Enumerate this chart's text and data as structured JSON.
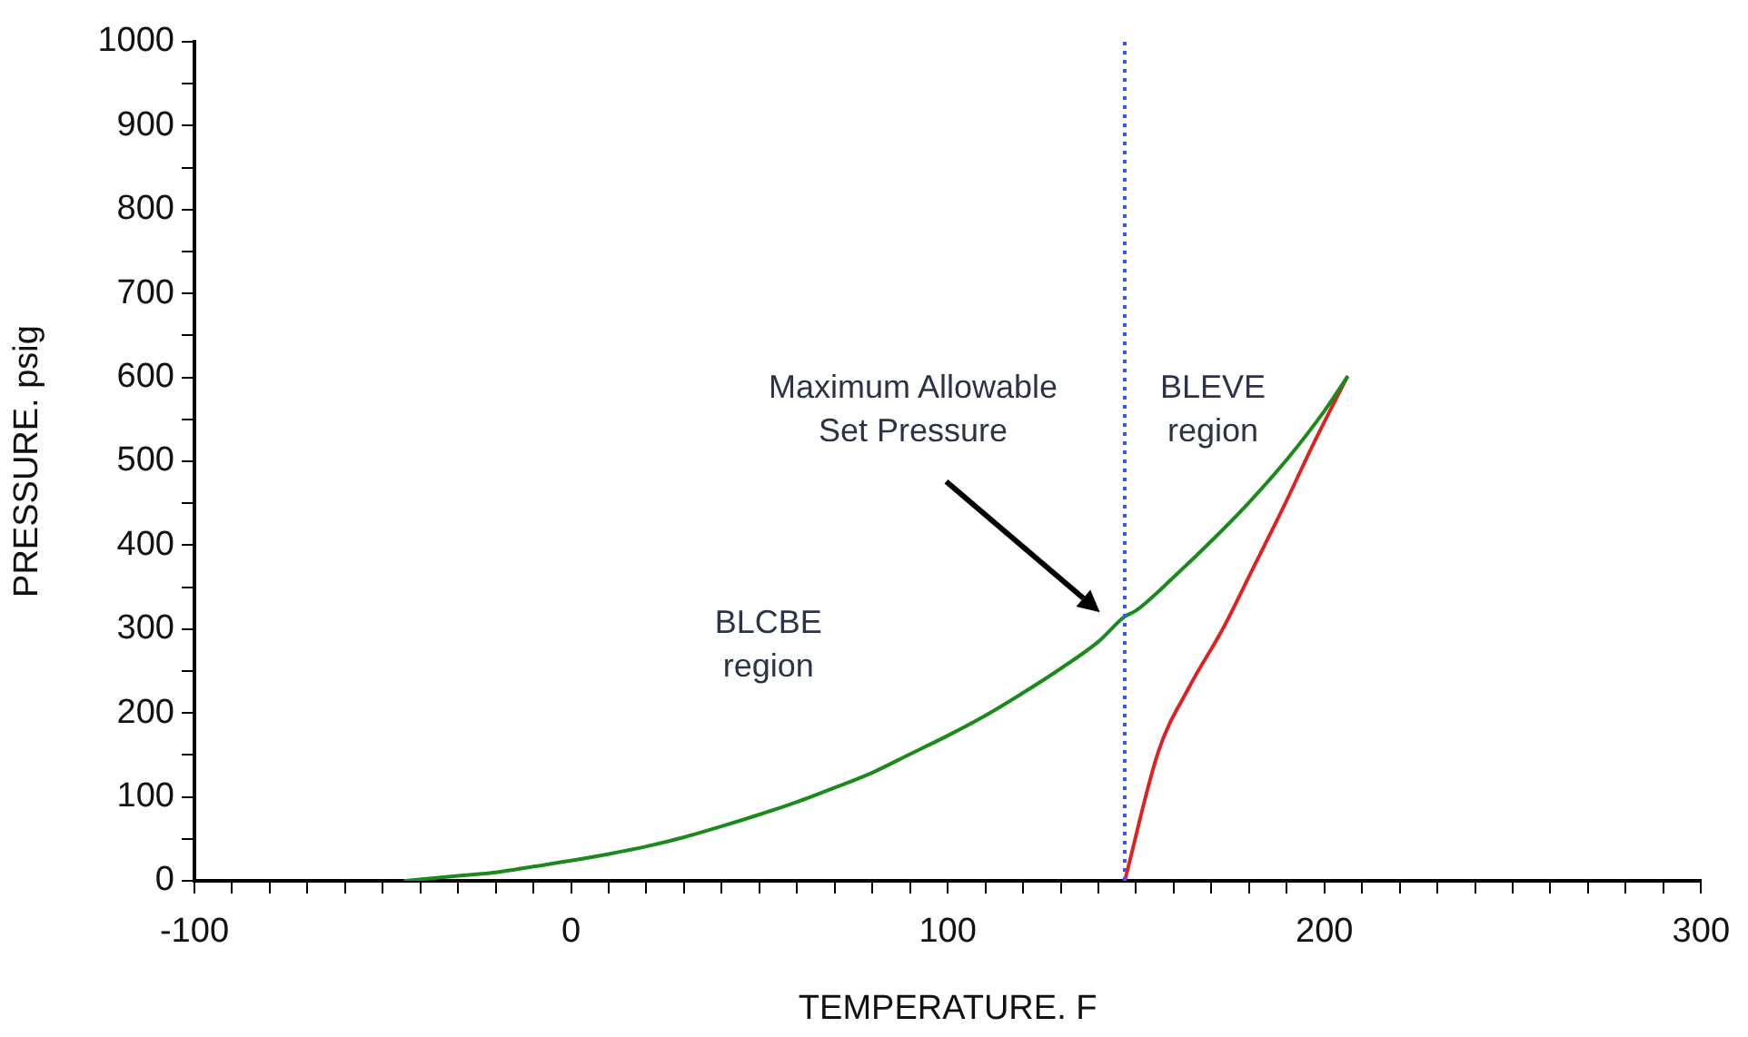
{
  "chart_data": {
    "type": "line",
    "xlabel": "TEMPERATURE. F",
    "ylabel": "PRESSURE. psig",
    "series": [
      {
        "color": "#1a8a1a",
        "x": [
          -44,
          -30,
          -20,
          -10,
          0,
          10,
          20,
          30,
          40,
          50,
          60,
          70,
          80,
          90,
          100,
          110,
          120,
          130,
          140,
          147,
          150,
          160,
          170,
          180,
          190,
          200,
          206
        ],
        "values": [
          0,
          6,
          10,
          17,
          24,
          32,
          41,
          52,
          65,
          79,
          94,
          111,
          129,
          151,
          173,
          197,
          224,
          253,
          285,
          315,
          322,
          362,
          405,
          451,
          502,
          560,
          600
        ]
      },
      {
        "color": "#dd2222",
        "x": [
          147,
          156,
          164,
          173,
          181,
          189,
          197,
          206
        ],
        "values": [
          0,
          155,
          230,
          300,
          372,
          444,
          520,
          600
        ]
      }
    ],
    "xlim": [
      -100,
      300
    ],
    "xticks": [
      -100,
      {
        "value": -90,
        "label": null
      },
      {
        "value": -80,
        "label": null
      },
      {
        "value": -70,
        "label": null
      },
      {
        "value": -60,
        "label": null
      },
      {
        "value": -50,
        "label": null
      },
      {
        "value": -40,
        "label": null
      },
      {
        "value": -30,
        "label": null
      },
      {
        "value": -20,
        "label": null
      },
      {
        "value": -10,
        "label": null
      },
      0,
      {
        "value": 10,
        "label": null
      },
      {
        "value": 20,
        "label": null
      },
      {
        "value": 30,
        "label": null
      },
      {
        "value": 40,
        "label": null
      },
      {
        "value": 50,
        "label": null
      },
      {
        "value": 60,
        "label": null
      },
      {
        "value": 70,
        "label": null
      },
      {
        "value": 80,
        "label": null
      },
      {
        "value": 90,
        "label": null
      },
      100,
      {
        "value": 110,
        "label": null
      },
      {
        "value": 120,
        "label": null
      },
      {
        "value": 130,
        "label": null
      },
      {
        "value": 140,
        "label": null
      },
      {
        "value": 150,
        "label": null
      },
      {
        "value": 160,
        "label": null
      },
      {
        "value": 170,
        "label": null
      },
      {
        "value": 180,
        "label": null
      },
      {
        "value": 190,
        "label": null
      },
      200,
      {
        "value": 210,
        "label": null
      },
      {
        "value": 220,
        "label": null
      },
      {
        "value": 230,
        "label": null
      },
      {
        "value": 240,
        "label": null
      },
      {
        "value": 250,
        "label": null
      },
      {
        "value": 260,
        "label": null
      },
      {
        "value": 270,
        "label": null
      },
      {
        "value": 280,
        "label": null
      },
      {
        "value": 290,
        "label": null
      },
      300
    ],
    "ylim": [
      0,
      1000
    ],
    "yticks": [
      0,
      {
        "value": 50,
        "label": null
      },
      100,
      {
        "value": 150,
        "label": null
      },
      200,
      {
        "value": 250,
        "label": null
      },
      300,
      {
        "value": 350,
        "label": null
      },
      400,
      {
        "value": 450,
        "label": null
      },
      500,
      {
        "value": 550,
        "label": null
      },
      600,
      {
        "value": 650,
        "label": null
      },
      700,
      {
        "value": 750,
        "label": null
      },
      800,
      {
        "value": 850,
        "label": null
      },
      900,
      {
        "value": 950,
        "label": null
      },
      1000
    ],
    "ref_lines": [
      {
        "axis": "x",
        "value": 147,
        "color": "#3355ff",
        "line_style": "dotted"
      }
    ],
    "annotations": [
      "Maximum Allowable\nSet Pressure",
      "BLCBE\nregion",
      "BLEVE\nregion"
    ],
    "grid": false,
    "legend": false,
    "marker": "none",
    "line_style": "solid"
  }
}
